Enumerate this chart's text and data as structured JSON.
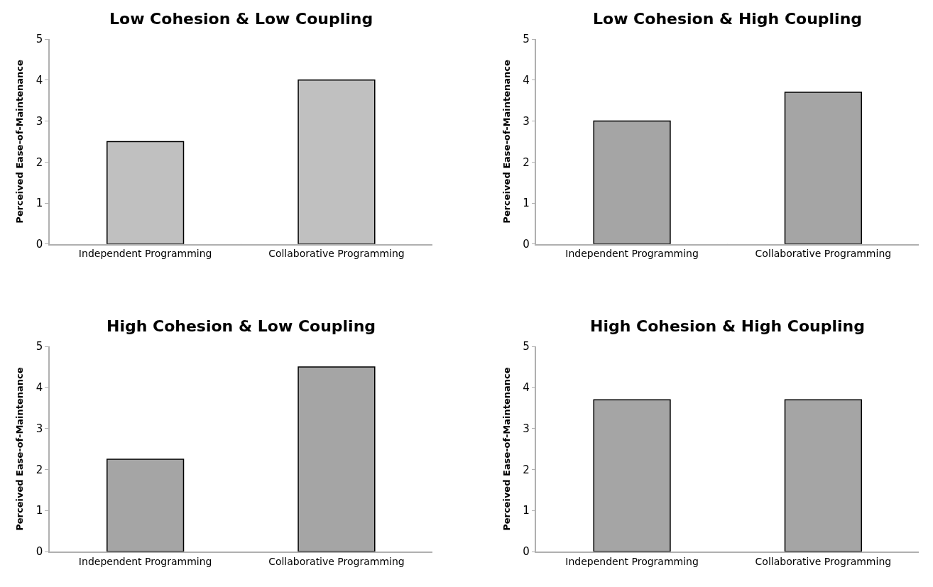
{
  "chart_data": [
    {
      "type": "bar",
      "title": "Low Cohesion & Low Coupling",
      "ylabel": "Perceived Ease-of-Maintenance",
      "categories": [
        "Independent Programming",
        "Collaborative Programming"
      ],
      "values": [
        2.5,
        4
      ],
      "color": "#c0c0c0",
      "ylim": [
        0,
        5
      ],
      "yticks": [
        0,
        1,
        2,
        3,
        4,
        5
      ]
    },
    {
      "type": "bar",
      "title": "Low Cohesion & High Coupling",
      "ylabel": "Perceived Ease-of-Maintenance",
      "categories": [
        "Independent Programming",
        "Collaborative Programming"
      ],
      "values": [
        3,
        3.7
      ],
      "color": "#a5a5a5",
      "ylim": [
        0,
        5
      ],
      "yticks": [
        0,
        1,
        2,
        3,
        4,
        5
      ]
    },
    {
      "type": "bar",
      "title": "High Cohesion & Low Coupling",
      "ylabel": "Perceived Ease-of-Maintenance",
      "categories": [
        "Independent Programming",
        "Collaborative Programming"
      ],
      "values": [
        2.25,
        4.5
      ],
      "color": "#a5a5a5",
      "ylim": [
        0,
        5
      ],
      "yticks": [
        0,
        1,
        2,
        3,
        4,
        5
      ]
    },
    {
      "type": "bar",
      "title": "High Cohesion & High Coupling",
      "ylabel": "Perceived Ease-of-Maintenance",
      "categories": [
        "Independent Programming",
        "Collaborative Programming"
      ],
      "values": [
        3.7,
        3.7
      ],
      "color": "#a5a5a5",
      "ylim": [
        0,
        5
      ],
      "yticks": [
        0,
        1,
        2,
        3,
        4,
        5
      ]
    }
  ]
}
